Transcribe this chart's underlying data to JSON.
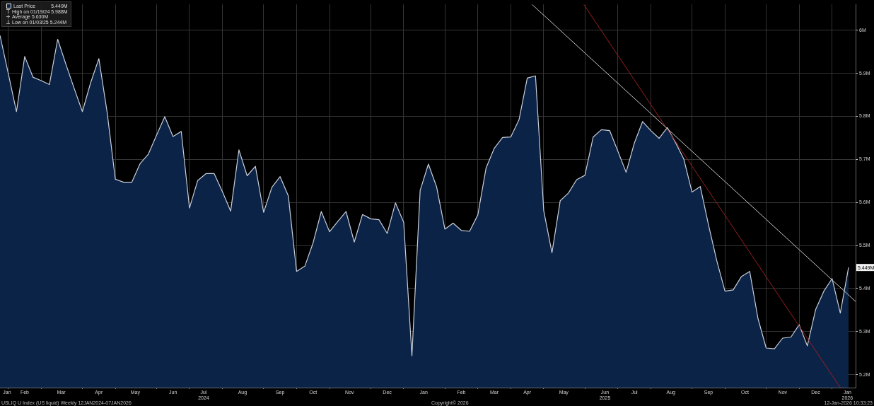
{
  "chart_data": {
    "type": "area",
    "x": [
      "2024-01-19",
      "2024-01-26",
      "2024-02-02",
      "2024-02-09",
      "2024-02-16",
      "2024-02-23",
      "2024-03-01",
      "2024-03-08",
      "2024-03-15",
      "2024-03-22",
      "2024-03-29",
      "2024-04-05",
      "2024-04-12",
      "2024-04-19",
      "2024-04-26",
      "2024-05-03",
      "2024-05-10",
      "2024-05-17",
      "2024-05-24",
      "2024-05-31",
      "2024-06-07",
      "2024-06-14",
      "2024-06-21",
      "2024-06-28",
      "2024-07-05",
      "2024-07-12",
      "2024-07-19",
      "2024-07-26",
      "2024-08-02",
      "2024-08-09",
      "2024-08-16",
      "2024-08-23",
      "2024-08-30",
      "2024-09-06",
      "2024-09-13",
      "2024-09-20",
      "2024-09-27",
      "2024-10-04",
      "2024-10-11",
      "2024-10-18",
      "2024-10-25",
      "2024-11-01",
      "2024-11-08",
      "2024-11-15",
      "2024-11-22",
      "2024-11-29",
      "2024-12-06",
      "2024-12-13",
      "2024-12-20",
      "2024-12-27",
      "2025-01-03",
      "2025-01-10",
      "2025-01-17",
      "2025-01-24",
      "2025-01-31",
      "2025-02-07",
      "2025-02-14",
      "2025-02-21",
      "2025-02-28",
      "2025-03-07",
      "2025-03-14",
      "2025-03-21",
      "2025-03-28",
      "2025-04-04",
      "2025-04-11",
      "2025-04-18",
      "2025-04-25",
      "2025-05-02",
      "2025-05-09",
      "2025-05-16",
      "2025-05-23",
      "2025-05-30",
      "2025-06-06",
      "2025-06-13",
      "2025-06-20",
      "2025-06-27",
      "2025-07-04",
      "2025-07-11",
      "2025-07-18",
      "2025-07-25",
      "2025-08-01",
      "2025-08-08",
      "2025-08-15",
      "2025-08-22",
      "2025-08-29",
      "2025-09-05",
      "2025-09-12",
      "2025-09-19",
      "2025-09-26",
      "2025-10-03",
      "2025-10-10",
      "2025-10-17",
      "2025-10-24",
      "2025-10-31",
      "2025-11-07",
      "2025-11-14",
      "2025-11-21",
      "2025-11-28",
      "2025-12-05",
      "2025-12-12",
      "2025-12-19",
      "2025-12-26",
      "2026-01-02",
      "2026-01-09"
    ],
    "series": [
      {
        "name": "Last Price",
        "color": "#0c2348",
        "values": [
          5.988,
          5.9,
          5.811,
          5.939,
          5.891,
          5.883,
          5.874,
          5.979,
          5.921,
          5.865,
          5.811,
          5.878,
          5.934,
          5.81,
          5.654,
          5.647,
          5.647,
          5.69,
          5.712,
          5.756,
          5.799,
          5.753,
          5.765,
          5.587,
          5.651,
          5.667,
          5.667,
          5.625,
          5.58,
          5.722,
          5.662,
          5.684,
          5.577,
          5.635,
          5.66,
          5.615,
          5.44,
          5.452,
          5.506,
          5.579,
          5.532,
          5.556,
          5.579,
          5.508,
          5.572,
          5.562,
          5.56,
          5.528,
          5.599,
          5.554,
          5.244,
          5.628,
          5.689,
          5.636,
          5.538,
          5.552,
          5.535,
          5.533,
          5.571,
          5.68,
          5.726,
          5.751,
          5.752,
          5.792,
          5.889,
          5.894,
          5.581,
          5.483,
          5.604,
          5.622,
          5.653,
          5.663,
          5.752,
          5.769,
          5.767,
          5.719,
          5.67,
          5.738,
          5.788,
          5.767,
          5.749,
          5.774,
          5.739,
          5.701,
          5.624,
          5.637,
          5.548,
          5.465,
          5.394,
          5.397,
          5.428,
          5.44,
          5.331,
          5.262,
          5.26,
          5.285,
          5.287,
          5.316,
          5.267,
          5.351,
          5.394,
          5.423,
          5.343,
          5.449
        ],
        "value_labels": [
          null,
          null,
          null,
          null,
          null,
          null,
          null,
          null,
          null,
          null,
          null,
          null,
          null,
          null,
          null,
          null,
          null,
          null,
          null,
          null,
          null,
          null,
          null,
          null,
          null,
          null,
          null,
          null,
          null,
          null,
          null,
          null,
          null,
          null,
          null,
          null,
          null,
          null,
          null,
          null,
          null,
          null,
          null,
          null,
          null,
          null,
          null,
          null,
          null,
          null,
          null,
          null,
          null,
          null,
          null,
          null,
          null,
          null,
          null,
          null,
          null,
          null,
          null,
          null,
          null,
          null,
          null,
          null,
          null,
          null,
          null,
          null,
          null,
          null,
          null,
          null,
          null,
          null,
          null,
          null,
          null,
          null,
          null,
          null,
          null,
          null,
          null,
          null,
          null,
          null,
          null,
          null,
          null,
          null,
          null,
          null,
          null,
          null,
          null,
          null,
          null,
          null,
          null,
          "5.449M"
        ]
      },
      {
        "type": "line",
        "color": "#c8c8c8",
        "x": [
          "2025-04-15",
          "2026-01-15"
        ],
        "values": [
          6.06,
          5.37
        ]
      },
      {
        "type": "line",
        "color": "#9a1f1f",
        "x": [
          "2025-05-29",
          "2026-01-02"
        ],
        "values": [
          6.06,
          5.17
        ]
      }
    ],
    "xlim": [
      "2024-01-19",
      "2026-01-15"
    ],
    "xticks": [
      {
        "value": "2024-01-25",
        "label": "Jan"
      },
      {
        "value": "2024-01-26",
        "label": null
      },
      {
        "value": "2024-02-09",
        "label": "Feb"
      },
      {
        "value": "2024-02-23",
        "label": null
      },
      {
        "value": "2024-03-11",
        "label": "Mar"
      },
      {
        "value": "2024-03-29",
        "label": null
      },
      {
        "value": "2024-04-12",
        "label": "Apr"
      },
      {
        "value": "2024-04-26",
        "label": null
      },
      {
        "value": "2024-05-13",
        "label": "May"
      },
      {
        "value": "2024-05-31",
        "label": null
      },
      {
        "value": "2024-06-14",
        "label": "Jun"
      },
      {
        "value": "2024-06-28",
        "label": null
      },
      {
        "value": "2024-07-10",
        "label": "Jul\n2024"
      },
      {
        "value": "2024-07-26",
        "label": null
      },
      {
        "value": "2024-08-12",
        "label": "Aug"
      },
      {
        "value": "2024-08-30",
        "label": null
      },
      {
        "value": "2024-09-13",
        "label": "Sep"
      },
      {
        "value": "2024-09-27",
        "label": null
      },
      {
        "value": "2024-10-11",
        "label": "Oct"
      },
      {
        "value": "2024-10-25",
        "label": null
      },
      {
        "value": "2024-11-11",
        "label": "Nov"
      },
      {
        "value": "2024-11-29",
        "label": null
      },
      {
        "value": "2024-12-13",
        "label": "Dec"
      },
      {
        "value": "2024-12-27",
        "label": null
      },
      {
        "value": "2025-01-13",
        "label": "Jan"
      },
      {
        "value": "2025-01-31",
        "label": null
      },
      {
        "value": "2025-02-14",
        "label": "Feb"
      },
      {
        "value": "2025-02-28",
        "label": null
      },
      {
        "value": "2025-03-14",
        "label": "Mar"
      },
      {
        "value": "2025-03-28",
        "label": null
      },
      {
        "value": "2025-04-11",
        "label": "Apr"
      },
      {
        "value": "2025-04-25",
        "label": null
      },
      {
        "value": "2025-05-12",
        "label": "May"
      },
      {
        "value": "2025-05-30",
        "label": null
      },
      {
        "value": "2025-06-16",
        "label": "Jun\n2025"
      },
      {
        "value": "2025-06-27",
        "label": null
      },
      {
        "value": "2025-07-11",
        "label": "Jul"
      },
      {
        "value": "2025-07-25",
        "label": null
      },
      {
        "value": "2025-08-11",
        "label": "Aug"
      },
      {
        "value": "2025-08-29",
        "label": null
      },
      {
        "value": "2025-09-12",
        "label": "Sep"
      },
      {
        "value": "2025-09-26",
        "label": null
      },
      {
        "value": "2025-10-13",
        "label": "Oct"
      },
      {
        "value": "2025-10-31",
        "label": null
      },
      {
        "value": "2025-11-14",
        "label": "Nov"
      },
      {
        "value": "2025-11-28",
        "label": null
      },
      {
        "value": "2025-12-12",
        "label": "Dec"
      },
      {
        "value": "2025-12-26",
        "label": null
      },
      {
        "value": "2026-01-08",
        "label": "Jan\n2026"
      }
    ],
    "ylim": [
      5.17,
      6.06
    ],
    "yticks": [
      {
        "value": 5.2,
        "label": "5.2M"
      },
      {
        "value": 5.3,
        "label": "5.3M"
      },
      {
        "value": 5.4,
        "label": "5.4M"
      },
      {
        "value": 5.5,
        "label": "5.5M"
      },
      {
        "value": 5.6,
        "label": "5.6M"
      },
      {
        "value": 5.7,
        "label": "5.7M"
      },
      {
        "value": 5.8,
        "label": "5.8M"
      },
      {
        "value": 5.9,
        "label": "5.9M"
      },
      {
        "value": 6,
        "label": "6M"
      }
    ],
    "grid": true,
    "legend": "top left",
    "annotations": [
      "High on 01/19/24 5.988M",
      "Average 5.630M",
      "Low on 01/03/25 5.244M",
      "USLIQ U Index (US liquid) Weekly 12JAN2024-07JAN2026",
      "Copyright© 2026",
      "12-Jan-2026 10:33:23"
    ]
  }
}
